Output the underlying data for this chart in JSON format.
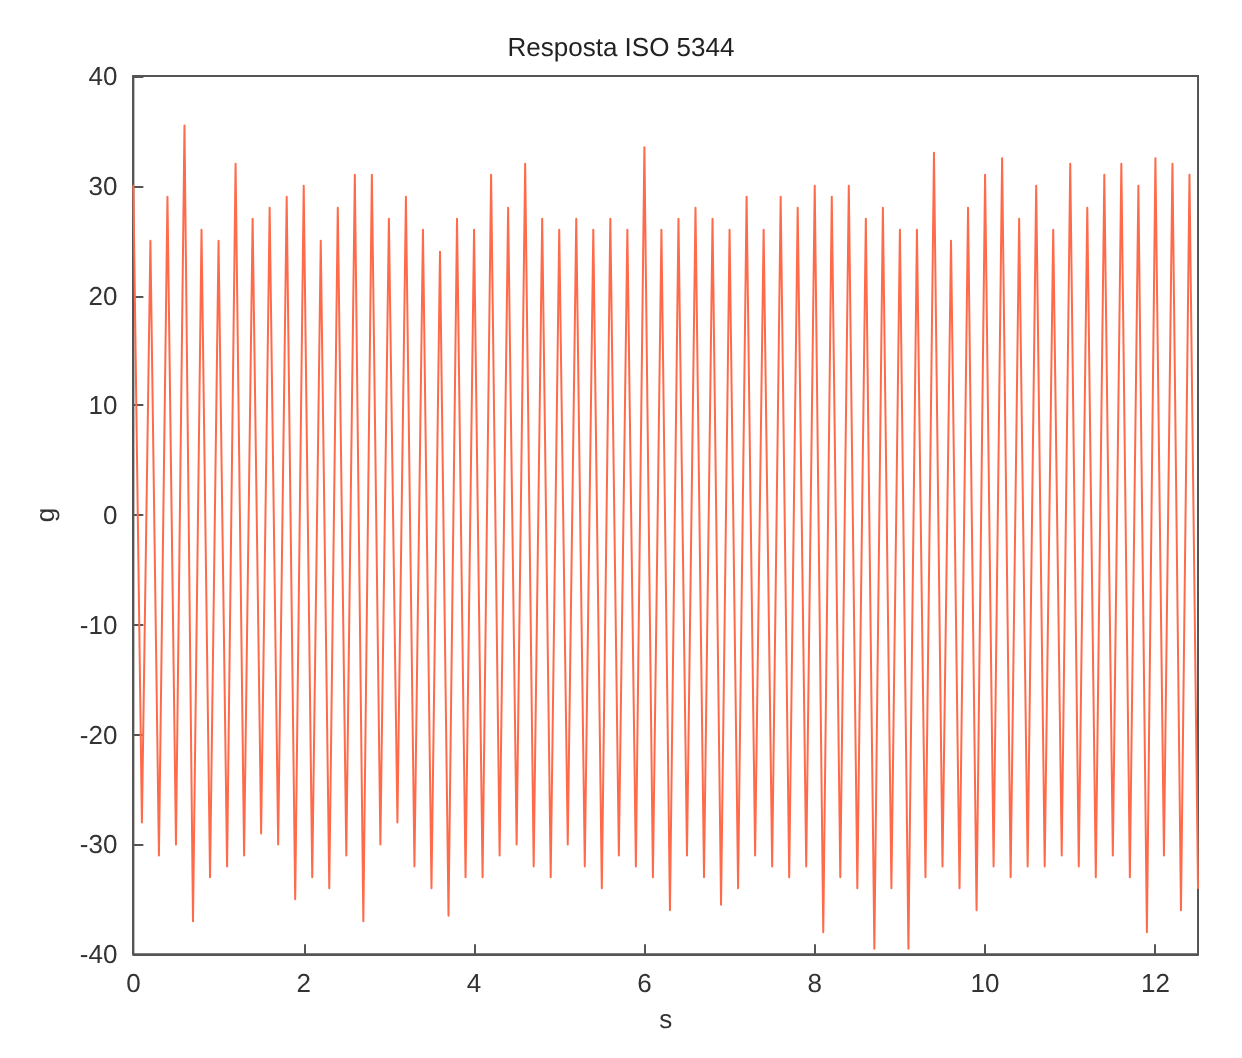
{
  "chart_data": {
    "type": "line",
    "title": "Resposta ISO 5344",
    "xlabel": "s",
    "ylabel": "g",
    "x": [
      0.0,
      0.1,
      0.2,
      0.3,
      0.4,
      0.5,
      0.6,
      0.7,
      0.8,
      0.9,
      1.0,
      1.1,
      1.2,
      1.3,
      1.4,
      1.5,
      1.6,
      1.7,
      1.8,
      1.9,
      2.0,
      2.1,
      2.2,
      2.3,
      2.4,
      2.5,
      2.6,
      2.7,
      2.8,
      2.9,
      3.0,
      3.1,
      3.2,
      3.3,
      3.4,
      3.5,
      3.6,
      3.7,
      3.8,
      3.9,
      4.0,
      4.1,
      4.2,
      4.3,
      4.4,
      4.5,
      4.6,
      4.7,
      4.8,
      4.9,
      5.0,
      5.1,
      5.2,
      5.3,
      5.4,
      5.5,
      5.6,
      5.7,
      5.8,
      5.9,
      6.0,
      6.1,
      6.2,
      6.3,
      6.4,
      6.5,
      6.6,
      6.7,
      6.8,
      6.9,
      7.0,
      7.1,
      7.2,
      7.3,
      7.4,
      7.5,
      7.6,
      7.7,
      7.8,
      7.9,
      8.0,
      8.1,
      8.2,
      8.3,
      8.4,
      8.5,
      8.6,
      8.7,
      8.8,
      8.9,
      9.0,
      9.1,
      9.2,
      9.3,
      9.4,
      9.5,
      9.6,
      9.7,
      9.8,
      9.9,
      10.0,
      10.1,
      10.2,
      10.3,
      10.4,
      10.5,
      10.6,
      10.7,
      10.8,
      10.9,
      11.0,
      11.1,
      11.2,
      11.3,
      11.4,
      11.5,
      11.6,
      11.7,
      11.8,
      11.9,
      12.0,
      12.1,
      12.2,
      12.3,
      12.4,
      12.5
    ],
    "series": [
      {
        "color": "#ff6a4a",
        "values": [
          30,
          -28,
          25,
          -31,
          29,
          -30,
          35.5,
          -37,
          26,
          -33,
          25,
          -32,
          32,
          -31,
          27,
          -29,
          28,
          -30,
          29,
          -35,
          30,
          -33,
          25,
          -34,
          28,
          -31,
          31,
          -37,
          31,
          -30,
          27,
          -28,
          29,
          -32,
          26,
          -34,
          24,
          -36.5,
          27,
          -33,
          26,
          -33,
          31,
          -31,
          28,
          -30,
          32,
          -32,
          27,
          -33,
          26,
          -30,
          27,
          -32,
          26,
          -34,
          27,
          -31,
          26,
          -32,
          33.5,
          -33,
          26,
          -36,
          27,
          -31,
          28,
          -33,
          27,
          -35.5,
          26,
          -34,
          29,
          -31,
          26,
          -32,
          29,
          -33,
          28,
          -32,
          30,
          -38,
          29,
          -33,
          30,
          -34,
          27,
          -39.5,
          28,
          -34,
          26,
          -39.5,
          26,
          -33,
          33,
          -32,
          25,
          -34,
          28,
          -36,
          31,
          -32,
          32.5,
          -33,
          27,
          -32,
          30,
          -32,
          26,
          -31,
          32,
          -32,
          28,
          -33,
          31,
          -31,
          32,
          -33,
          30,
          -38,
          32.5,
          -31,
          32,
          -36,
          31,
          -34
        ]
      }
    ],
    "xlim": [
      0,
      12.5
    ],
    "xticks": [
      0,
      2,
      4,
      6,
      8,
      10,
      12
    ],
    "ylim": [
      -40,
      40
    ],
    "yticks": [
      -40,
      -30,
      -20,
      -10,
      0,
      10,
      20,
      30,
      40
    ],
    "grid": false,
    "marker": "none",
    "line_style": "solid"
  }
}
